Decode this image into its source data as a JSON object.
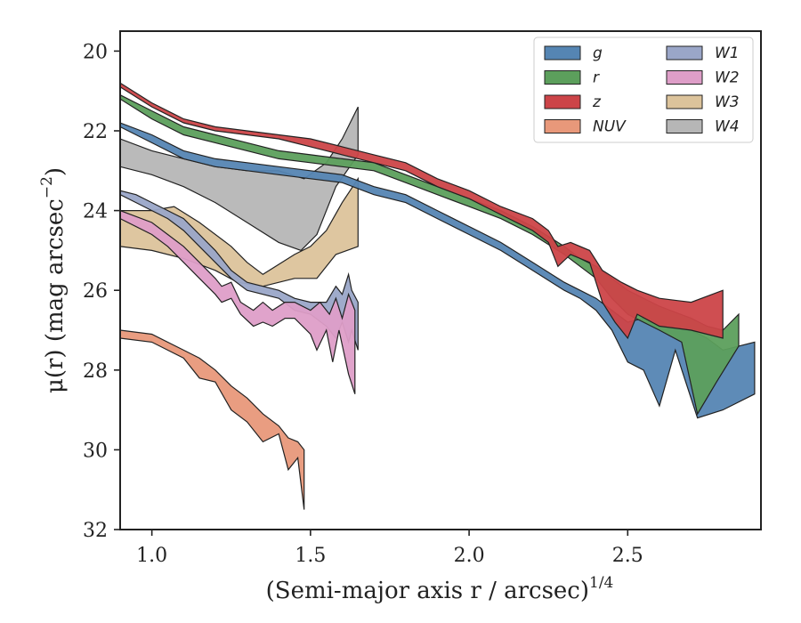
{
  "chart_data": {
    "type": "area",
    "title": "",
    "xlabel": "(Semi-major axis r / arcsec)",
    "xlabel_exponent": "1/4",
    "ylabel": "μ(r) (mag arcsec",
    "ylabel_exponent": "−2",
    "ylabel_close": ")",
    "xlim": [
      0.9,
      2.92
    ],
    "ylim": [
      32,
      19.5
    ],
    "y_inverted": true,
    "xticks": [
      1.0,
      1.5,
      2.0,
      2.5
    ],
    "xtick_labels": [
      "1.0",
      "1.5",
      "2.0",
      "2.5"
    ],
    "yticks": [
      20,
      22,
      24,
      26,
      28,
      30,
      32
    ],
    "ytick_labels": [
      "20",
      "22",
      "24",
      "26",
      "28",
      "30",
      "32"
    ],
    "grid": false,
    "legend_position": "top-right",
    "legend_columns": 2,
    "series": [
      {
        "name": "W4",
        "color": "#b6b6b6",
        "upper": [
          [
            0.9,
            22.2
          ],
          [
            1.0,
            22.5
          ],
          [
            1.1,
            22.7
          ],
          [
            1.2,
            22.9
          ],
          [
            1.3,
            23.0
          ],
          [
            1.4,
            23.0
          ],
          [
            1.48,
            23.2
          ],
          [
            1.55,
            22.8
          ],
          [
            1.6,
            22.2
          ],
          [
            1.65,
            21.4
          ]
        ],
        "lower": [
          [
            0.9,
            22.9
          ],
          [
            1.0,
            23.1
          ],
          [
            1.1,
            23.4
          ],
          [
            1.2,
            23.8
          ],
          [
            1.3,
            24.3
          ],
          [
            1.4,
            24.8
          ],
          [
            1.47,
            25.0
          ],
          [
            1.52,
            24.6
          ],
          [
            1.58,
            23.4
          ],
          [
            1.65,
            22.6
          ]
        ]
      },
      {
        "name": "W3",
        "color": "#dcc39b",
        "upper": [
          [
            0.9,
            24.0
          ],
          [
            1.0,
            24.0
          ],
          [
            1.07,
            23.9
          ],
          [
            1.15,
            24.3
          ],
          [
            1.25,
            24.9
          ],
          [
            1.3,
            25.3
          ],
          [
            1.35,
            25.6
          ],
          [
            1.45,
            25.1
          ],
          [
            1.5,
            24.9
          ],
          [
            1.55,
            24.5
          ],
          [
            1.6,
            23.8
          ],
          [
            1.65,
            23.2
          ]
        ],
        "lower": [
          [
            0.9,
            24.9
          ],
          [
            1.0,
            25.0
          ],
          [
            1.1,
            25.2
          ],
          [
            1.2,
            25.5
          ],
          [
            1.27,
            25.8
          ],
          [
            1.35,
            25.9
          ],
          [
            1.45,
            25.7
          ],
          [
            1.52,
            25.7
          ],
          [
            1.58,
            25.1
          ],
          [
            1.65,
            24.9
          ]
        ]
      },
      {
        "name": "W1",
        "color": "#9aa6c8",
        "upper": [
          [
            0.9,
            23.5
          ],
          [
            0.95,
            23.6
          ],
          [
            1.0,
            23.8
          ],
          [
            1.05,
            24.0
          ],
          [
            1.1,
            24.2
          ],
          [
            1.15,
            24.6
          ],
          [
            1.2,
            25.0
          ],
          [
            1.25,
            25.5
          ],
          [
            1.3,
            25.8
          ],
          [
            1.35,
            25.9
          ],
          [
            1.4,
            26.0
          ],
          [
            1.45,
            26.2
          ],
          [
            1.5,
            26.3
          ],
          [
            1.55,
            26.3
          ],
          [
            1.58,
            25.9
          ],
          [
            1.6,
            26.1
          ],
          [
            1.62,
            25.6
          ],
          [
            1.63,
            26.0
          ],
          [
            1.65,
            26.3
          ]
        ],
        "lower": [
          [
            0.9,
            23.6
          ],
          [
            0.95,
            23.8
          ],
          [
            1.0,
            24.0
          ],
          [
            1.05,
            24.2
          ],
          [
            1.1,
            24.5
          ],
          [
            1.15,
            24.9
          ],
          [
            1.2,
            25.3
          ],
          [
            1.25,
            25.7
          ],
          [
            1.3,
            26.0
          ],
          [
            1.35,
            26.1
          ],
          [
            1.4,
            26.2
          ],
          [
            1.45,
            26.5
          ],
          [
            1.5,
            26.6
          ],
          [
            1.55,
            26.9
          ],
          [
            1.58,
            27.2
          ],
          [
            1.6,
            26.8
          ],
          [
            1.62,
            27.3
          ],
          [
            1.63,
            27.0
          ],
          [
            1.65,
            27.5
          ]
        ]
      },
      {
        "name": "W2",
        "color": "#de9ec8",
        "upper": [
          [
            0.9,
            24.0
          ],
          [
            1.0,
            24.3
          ],
          [
            1.05,
            24.6
          ],
          [
            1.1,
            24.9
          ],
          [
            1.15,
            25.3
          ],
          [
            1.2,
            25.7
          ],
          [
            1.22,
            25.9
          ],
          [
            1.25,
            25.8
          ],
          [
            1.28,
            26.3
          ],
          [
            1.32,
            26.5
          ],
          [
            1.35,
            26.3
          ],
          [
            1.38,
            26.5
          ],
          [
            1.42,
            26.3
          ],
          [
            1.45,
            26.3
          ],
          [
            1.5,
            26.5
          ],
          [
            1.53,
            26.3
          ],
          [
            1.56,
            26.6
          ],
          [
            1.58,
            26.2
          ],
          [
            1.6,
            26.7
          ],
          [
            1.62,
            26.1
          ],
          [
            1.64,
            26.5
          ]
        ],
        "lower": [
          [
            0.9,
            24.2
          ],
          [
            1.0,
            24.6
          ],
          [
            1.05,
            24.9
          ],
          [
            1.1,
            25.3
          ],
          [
            1.15,
            25.7
          ],
          [
            1.2,
            26.1
          ],
          [
            1.22,
            26.3
          ],
          [
            1.25,
            26.2
          ],
          [
            1.28,
            26.6
          ],
          [
            1.32,
            26.9
          ],
          [
            1.35,
            26.8
          ],
          [
            1.38,
            26.9
          ],
          [
            1.42,
            26.7
          ],
          [
            1.45,
            26.7
          ],
          [
            1.5,
            27.1
          ],
          [
            1.52,
            27.5
          ],
          [
            1.55,
            27.0
          ],
          [
            1.57,
            27.8
          ],
          [
            1.59,
            27.0
          ],
          [
            1.62,
            28.1
          ],
          [
            1.64,
            28.6
          ]
        ]
      },
      {
        "name": "g",
        "color": "#5585b3",
        "upper": [
          [
            0.9,
            21.8
          ],
          [
            1.0,
            22.1
          ],
          [
            1.1,
            22.5
          ],
          [
            1.2,
            22.7
          ],
          [
            1.3,
            22.8
          ],
          [
            1.4,
            22.9
          ],
          [
            1.5,
            23.0
          ],
          [
            1.6,
            23.1
          ],
          [
            1.7,
            23.4
          ],
          [
            1.8,
            23.6
          ],
          [
            1.9,
            24.0
          ],
          [
            2.0,
            24.4
          ],
          [
            2.1,
            24.8
          ],
          [
            2.2,
            25.3
          ],
          [
            2.3,
            25.8
          ],
          [
            2.35,
            26.0
          ],
          [
            2.4,
            26.2
          ],
          [
            2.45,
            26.5
          ],
          [
            2.5,
            26.8
          ],
          [
            2.55,
            26.7
          ],
          [
            2.6,
            26.8
          ],
          [
            2.7,
            27.0
          ],
          [
            2.75,
            27.2
          ],
          [
            2.8,
            27.5
          ],
          [
            2.85,
            27.4
          ],
          [
            2.9,
            27.3
          ]
        ],
        "lower": [
          [
            0.9,
            21.9
          ],
          [
            1.0,
            22.3
          ],
          [
            1.1,
            22.7
          ],
          [
            1.2,
            22.9
          ],
          [
            1.3,
            23.0
          ],
          [
            1.4,
            23.1
          ],
          [
            1.5,
            23.2
          ],
          [
            1.6,
            23.3
          ],
          [
            1.7,
            23.6
          ],
          [
            1.8,
            23.8
          ],
          [
            1.9,
            24.2
          ],
          [
            2.0,
            24.6
          ],
          [
            2.1,
            25.0
          ],
          [
            2.2,
            25.5
          ],
          [
            2.3,
            26.0
          ],
          [
            2.35,
            26.2
          ],
          [
            2.4,
            26.5
          ],
          [
            2.45,
            27.0
          ],
          [
            2.5,
            27.8
          ],
          [
            2.55,
            28.0
          ],
          [
            2.6,
            28.9
          ],
          [
            2.65,
            27.5
          ],
          [
            2.72,
            29.2
          ],
          [
            2.8,
            29.0
          ],
          [
            2.9,
            28.6
          ]
        ]
      },
      {
        "name": "r",
        "color": "#5c9f5c",
        "upper": [
          [
            0.9,
            21.1
          ],
          [
            1.0,
            21.5
          ],
          [
            1.1,
            21.9
          ],
          [
            1.2,
            22.1
          ],
          [
            1.3,
            22.3
          ],
          [
            1.4,
            22.5
          ],
          [
            1.5,
            22.6
          ],
          [
            1.6,
            22.7
          ],
          [
            1.7,
            22.8
          ],
          [
            1.8,
            23.1
          ],
          [
            1.9,
            23.4
          ],
          [
            2.0,
            23.7
          ],
          [
            2.1,
            24.0
          ],
          [
            2.2,
            24.4
          ],
          [
            2.3,
            24.9
          ],
          [
            2.35,
            25.2
          ],
          [
            2.4,
            25.4
          ],
          [
            2.45,
            25.7
          ],
          [
            2.5,
            26.0
          ],
          [
            2.6,
            26.4
          ],
          [
            2.7,
            26.7
          ],
          [
            2.75,
            26.9
          ],
          [
            2.8,
            27.0
          ],
          [
            2.85,
            26.6
          ]
        ],
        "lower": [
          [
            0.9,
            21.2
          ],
          [
            1.0,
            21.7
          ],
          [
            1.1,
            22.1
          ],
          [
            1.2,
            22.3
          ],
          [
            1.3,
            22.5
          ],
          [
            1.4,
            22.7
          ],
          [
            1.5,
            22.8
          ],
          [
            1.6,
            22.9
          ],
          [
            1.7,
            23.0
          ],
          [
            1.8,
            23.3
          ],
          [
            1.9,
            23.6
          ],
          [
            2.0,
            23.9
          ],
          [
            2.1,
            24.2
          ],
          [
            2.2,
            24.6
          ],
          [
            2.3,
            25.1
          ],
          [
            2.35,
            25.4
          ],
          [
            2.4,
            25.7
          ],
          [
            2.45,
            26.2
          ],
          [
            2.5,
            26.6
          ],
          [
            2.6,
            27.0
          ],
          [
            2.67,
            27.3
          ],
          [
            2.72,
            29.1
          ],
          [
            2.78,
            28.3
          ],
          [
            2.85,
            27.4
          ]
        ]
      },
      {
        "name": "z",
        "color": "#cc4448",
        "upper": [
          [
            0.9,
            20.8
          ],
          [
            1.0,
            21.3
          ],
          [
            1.1,
            21.7
          ],
          [
            1.2,
            21.9
          ],
          [
            1.3,
            22.0
          ],
          [
            1.4,
            22.1
          ],
          [
            1.5,
            22.2
          ],
          [
            1.6,
            22.4
          ],
          [
            1.7,
            22.6
          ],
          [
            1.8,
            22.8
          ],
          [
            1.9,
            23.2
          ],
          [
            2.0,
            23.5
          ],
          [
            2.1,
            23.9
          ],
          [
            2.2,
            24.2
          ],
          [
            2.25,
            24.5
          ],
          [
            2.28,
            24.9
          ],
          [
            2.32,
            24.8
          ],
          [
            2.38,
            25.0
          ],
          [
            2.42,
            25.5
          ],
          [
            2.48,
            25.8
          ],
          [
            2.53,
            26.0
          ],
          [
            2.6,
            26.2
          ],
          [
            2.7,
            26.3
          ],
          [
            2.8,
            26.0
          ]
        ],
        "lower": [
          [
            0.9,
            20.9
          ],
          [
            1.0,
            21.4
          ],
          [
            1.1,
            21.8
          ],
          [
            1.2,
            22.0
          ],
          [
            1.3,
            22.1
          ],
          [
            1.4,
            22.2
          ],
          [
            1.5,
            22.4
          ],
          [
            1.6,
            22.6
          ],
          [
            1.7,
            22.8
          ],
          [
            1.8,
            23.0
          ],
          [
            1.9,
            23.4
          ],
          [
            2.0,
            23.7
          ],
          [
            2.1,
            24.1
          ],
          [
            2.2,
            24.5
          ],
          [
            2.25,
            24.8
          ],
          [
            2.28,
            25.4
          ],
          [
            2.32,
            25.1
          ],
          [
            2.38,
            25.3
          ],
          [
            2.42,
            26.3
          ],
          [
            2.46,
            26.8
          ],
          [
            2.5,
            27.2
          ],
          [
            2.53,
            26.6
          ],
          [
            2.6,
            26.9
          ],
          [
            2.7,
            27.0
          ],
          [
            2.8,
            27.2
          ]
        ]
      },
      {
        "name": "NUV",
        "color": "#e8987a",
        "upper": [
          [
            0.9,
            27.0
          ],
          [
            1.0,
            27.1
          ],
          [
            1.1,
            27.5
          ],
          [
            1.15,
            27.7
          ],
          [
            1.2,
            28.0
          ],
          [
            1.25,
            28.4
          ],
          [
            1.3,
            28.7
          ],
          [
            1.35,
            29.1
          ],
          [
            1.4,
            29.4
          ],
          [
            1.43,
            29.7
          ],
          [
            1.46,
            29.8
          ],
          [
            1.48,
            30.0
          ]
        ],
        "lower": [
          [
            0.9,
            27.2
          ],
          [
            1.0,
            27.3
          ],
          [
            1.1,
            27.7
          ],
          [
            1.15,
            28.2
          ],
          [
            1.2,
            28.3
          ],
          [
            1.25,
            29.0
          ],
          [
            1.3,
            29.3
          ],
          [
            1.35,
            29.8
          ],
          [
            1.4,
            29.6
          ],
          [
            1.43,
            30.5
          ],
          [
            1.46,
            30.2
          ],
          [
            1.48,
            31.5
          ]
        ]
      }
    ],
    "legend_order": [
      "g",
      "r",
      "z",
      "NUV",
      "W1",
      "W2",
      "W3",
      "W4"
    ]
  }
}
